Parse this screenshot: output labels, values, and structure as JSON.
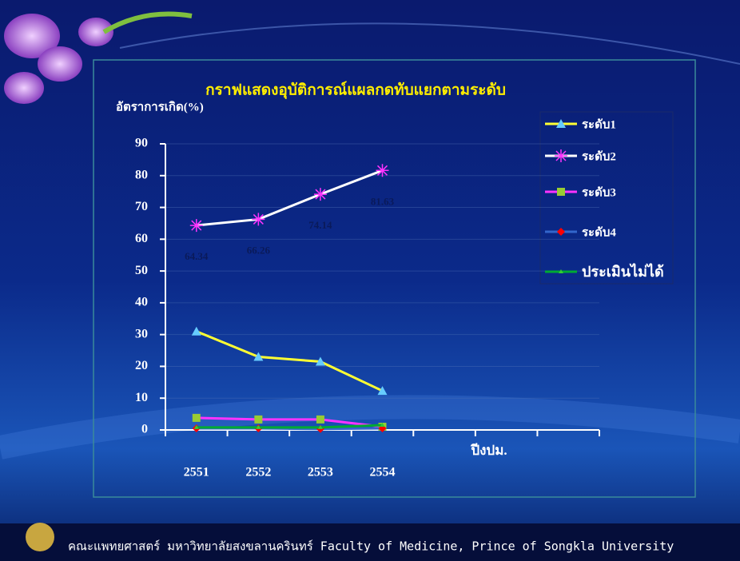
{
  "chart_data": {
    "type": "line",
    "title": "กราฟแสดงอุบัติการณ์แผลกดทับแยกตามระดับ",
    "y_label": "อัตราการเกิด(%)",
    "x_label": "ปีงปม.",
    "categories": [
      "2551",
      "2552",
      "2553",
      "2554",
      null,
      null,
      null
    ],
    "series": [
      {
        "name": "ระดับ1",
        "color": "#ffff33",
        "marker": "triangle",
        "marker_color": "#66ccff",
        "values": [
          31,
          23,
          21.5,
          12.3,
          null,
          null,
          null
        ]
      },
      {
        "name": "ระดับ2",
        "color": "#ffffff",
        "marker": "star",
        "marker_color": "#ff33ff",
        "show_values": true,
        "values": [
          64.34,
          66.26,
          74.14,
          81.63,
          null,
          null,
          null
        ]
      },
      {
        "name": "ระดับ3",
        "color": "#ff33ff",
        "marker": "square",
        "marker_color": "#99cc33",
        "values": [
          3.8,
          3.3,
          3.3,
          1.0,
          null,
          null,
          null
        ]
      },
      {
        "name": "ระดับ4",
        "color": "#3366cc",
        "marker": "diamond",
        "marker_color": "#ff0000",
        "values": [
          0.5,
          0.5,
          0.3,
          0.5,
          null,
          null,
          null
        ]
      },
      {
        "name": "ประเมินไม่ได้",
        "color": "#00aa33",
        "marker": "small-triangle",
        "marker_color": "#33cc33",
        "values": [
          0.8,
          0.8,
          0.8,
          1.5,
          null,
          null,
          null
        ]
      }
    ],
    "ylim": [
      0,
      90
    ],
    "yticks": [
      0,
      10,
      20,
      30,
      40,
      50,
      60,
      70,
      80,
      90
    ],
    "grid": true
  },
  "footer": "คณะแพทยศาสตร์ มหาวิทยาลัยสงขลานครินทร์  Faculty of Medicine, Prince of Songkla University"
}
